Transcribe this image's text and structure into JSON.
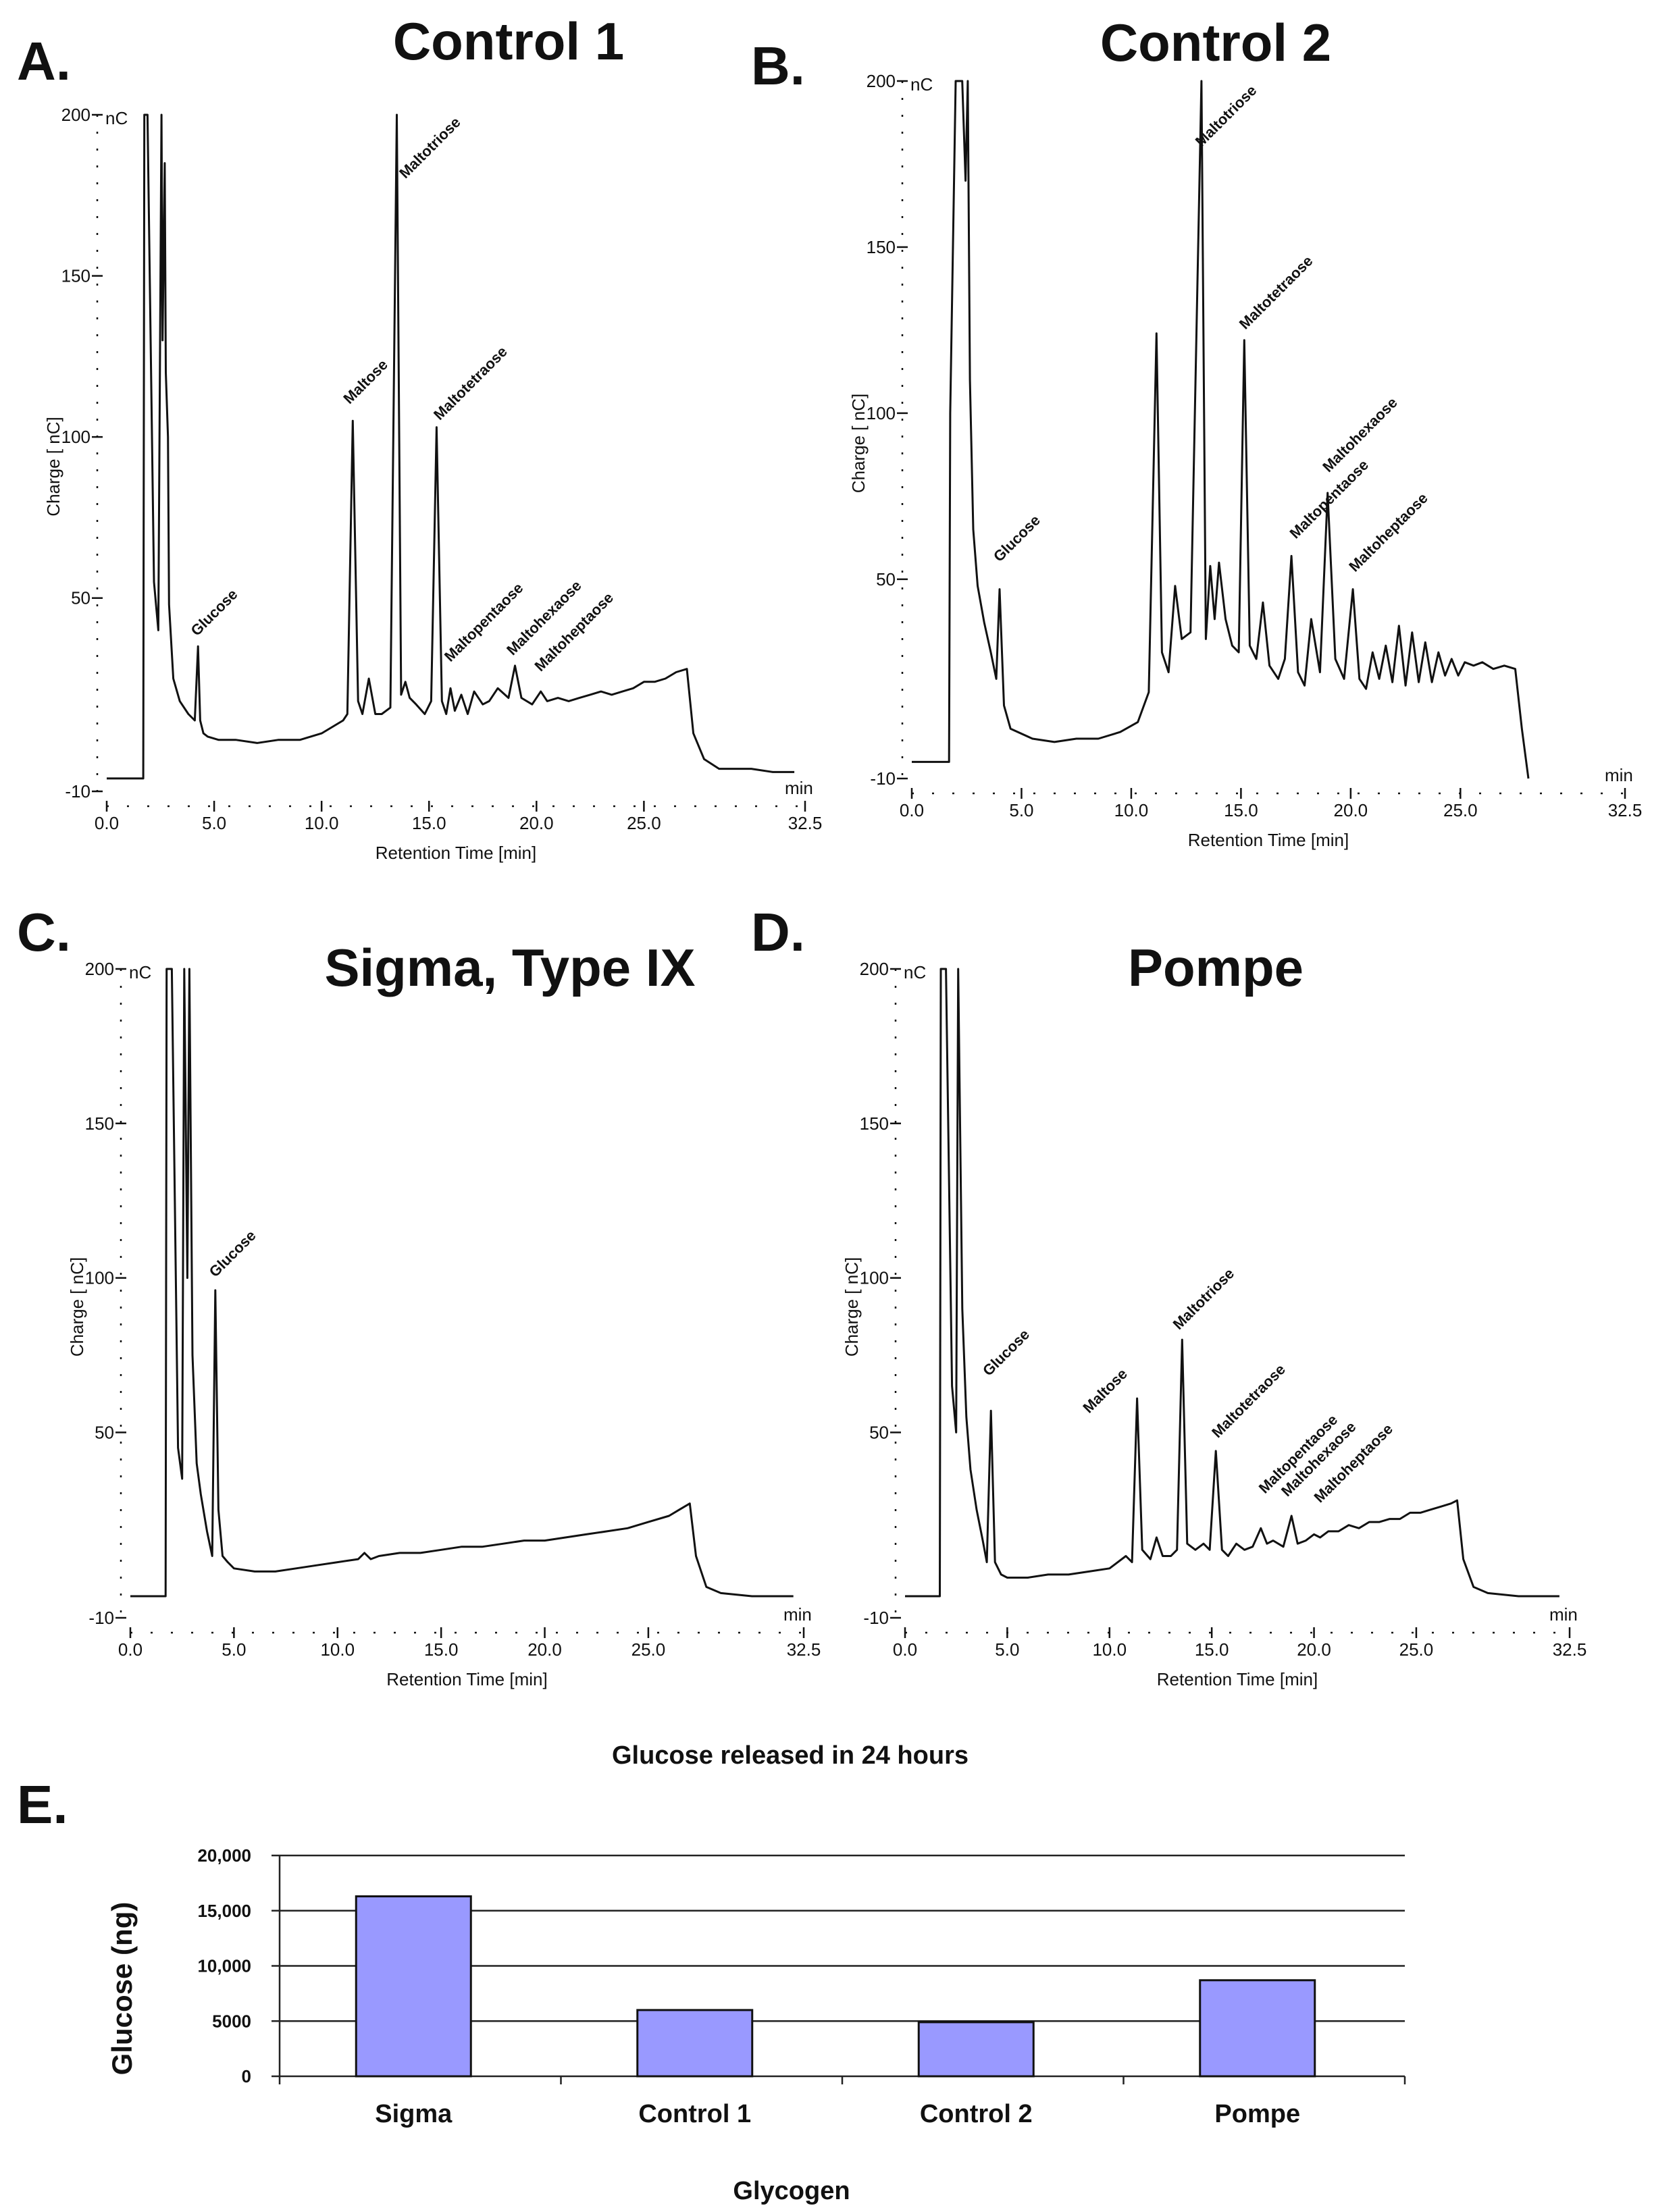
{
  "chart_data": [
    {
      "type": "line",
      "panel_letter": "A.",
      "title": "Control 1",
      "ylabel": "Charge [ nC]",
      "xlabel": "Retention Time [min]",
      "y_unit": "nC",
      "x_unit": "min",
      "ylim": [
        -10,
        200
      ],
      "xlim": [
        0,
        32.5
      ],
      "y_ticks": [
        "200",
        "150",
        "100",
        "50",
        "-10"
      ],
      "x_ticks": [
        "0.0",
        "5.0",
        "10.0",
        "15.0",
        "20.0",
        "25.0",
        "32.5"
      ],
      "x": [
        0.0,
        1.7,
        1.75,
        1.9,
        2.2,
        2.4,
        2.55,
        2.6,
        2.7,
        2.75,
        2.85,
        2.9,
        3.1,
        3.4,
        3.8,
        4.1,
        4.25,
        4.35,
        4.5,
        4.7,
        5.2,
        6.0,
        7.0,
        8.0,
        9.0,
        10.0,
        11.0,
        11.2,
        11.45,
        11.7,
        11.9,
        12.2,
        12.5,
        12.8,
        13.2,
        13.5,
        13.7,
        13.9,
        14.1,
        14.4,
        14.8,
        15.1,
        15.35,
        15.6,
        15.8,
        16.0,
        16.2,
        16.5,
        16.8,
        17.1,
        17.5,
        17.8,
        18.2,
        18.7,
        19.0,
        19.3,
        19.8,
        20.2,
        20.5,
        21.0,
        21.5,
        22.0,
        22.5,
        23.0,
        23.5,
        24.0,
        24.5,
        25.0,
        25.5,
        26.0,
        26.5,
        27.0,
        27.3,
        27.8,
        28.5,
        30.0,
        31.0,
        32.0
      ],
      "y": [
        -6,
        -6,
        200,
        200,
        55,
        40,
        200,
        130,
        185,
        120,
        100,
        48,
        25,
        18,
        14,
        12,
        35,
        12,
        8,
        7,
        6,
        6,
        5,
        6,
        6,
        8,
        12,
        14,
        105,
        18,
        14,
        25,
        14,
        14,
        16,
        200,
        20,
        24,
        19,
        17,
        14,
        18,
        103,
        18,
        14,
        22,
        15,
        20,
        14,
        21,
        17,
        18,
        22,
        19,
        29,
        19,
        17,
        21,
        18,
        19,
        18,
        19,
        20,
        21,
        20,
        21,
        22,
        24,
        24,
        25,
        27,
        28,
        8,
        0,
        -3,
        -3,
        -4,
        -4
      ],
      "peak_labels": [
        {
          "text": "Glucose",
          "x": 4.2,
          "y": 38
        },
        {
          "text": "Maltose",
          "x": 11.3,
          "y": 110
        },
        {
          "text": "Maltotriose",
          "x": 13.9,
          "y": 180
        },
        {
          "text": "Maltotetraose",
          "x": 15.5,
          "y": 105
        },
        {
          "text": "Maltopentaose",
          "x": 16.0,
          "y": 30
        },
        {
          "text": "Maltohexaose",
          "x": 18.9,
          "y": 32
        },
        {
          "text": "Maltoheptaose",
          "x": 20.2,
          "y": 27
        }
      ]
    },
    {
      "type": "line",
      "panel_letter": "B.",
      "title": "Control 2",
      "ylabel": "Charge [ nC]",
      "xlabel": "Retention Time [min]",
      "y_unit": "nC",
      "x_unit": "min",
      "ylim": [
        -10,
        200
      ],
      "xlim": [
        0,
        32.5
      ],
      "y_ticks": [
        "200",
        "150",
        "100",
        "50",
        "-10"
      ],
      "x_ticks": [
        "0.0",
        "5.0",
        "10.0",
        "15.0",
        "20.0",
        "25.0",
        "32.5"
      ],
      "x": [
        0.0,
        1.7,
        1.75,
        2.0,
        2.3,
        2.45,
        2.55,
        2.65,
        2.8,
        3.0,
        3.3,
        3.6,
        3.85,
        4.0,
        4.2,
        4.5,
        5.5,
        6.5,
        7.5,
        8.5,
        9.5,
        10.3,
        10.8,
        11.15,
        11.4,
        11.7,
        12.0,
        12.3,
        12.7,
        13.2,
        13.4,
        13.6,
        13.8,
        14.0,
        14.3,
        14.6,
        14.9,
        15.15,
        15.4,
        15.7,
        16.0,
        16.3,
        16.7,
        17.0,
        17.3,
        17.6,
        17.9,
        18.2,
        18.6,
        18.95,
        19.3,
        19.7,
        20.1,
        20.4,
        20.7,
        21.0,
        21.3,
        21.6,
        21.9,
        22.2,
        22.5,
        22.8,
        23.1,
        23.4,
        23.7,
        24.0,
        24.3,
        24.6,
        24.9,
        25.2,
        25.6,
        26.0,
        26.5,
        27.0,
        27.5,
        27.8,
        28.1
      ],
      "y": [
        -5,
        -5,
        100,
        200,
        200,
        170,
        200,
        110,
        65,
        48,
        37,
        28,
        20,
        47,
        12,
        5,
        2,
        1,
        2,
        2,
        4,
        7,
        16,
        124,
        28,
        22,
        48,
        32,
        34,
        200,
        32,
        54,
        38,
        55,
        38,
        30,
        28,
        122,
        30,
        26,
        43,
        24,
        20,
        26,
        57,
        22,
        18,
        38,
        22,
        76,
        26,
        20,
        47,
        20,
        17,
        28,
        20,
        30,
        19,
        36,
        18,
        34,
        19,
        31,
        19,
        28,
        21,
        26,
        21,
        25,
        24,
        25,
        23,
        24,
        23,
        5,
        -10
      ],
      "peak_labels": [
        {
          "text": "Glucose",
          "x": 4.0,
          "y": 55
        },
        {
          "text": "Maltotriose",
          "x": 13.2,
          "y": 180
        },
        {
          "text": "Maltotetraose",
          "x": 15.2,
          "y": 125
        },
        {
          "text": "Maltohexaose",
          "x": 19.0,
          "y": 82
        },
        {
          "text": "Maltopentaose",
          "x": 17.5,
          "y": 62
        },
        {
          "text": "Maltoheptaose",
          "x": 20.2,
          "y": 52
        }
      ]
    },
    {
      "type": "line",
      "panel_letter": "C.",
      "title": "Sigma, Type IX",
      "ylabel": "Charge [ nC]",
      "xlabel": "Retention Time [min]",
      "y_unit": "nC",
      "x_unit": "min",
      "ylim": [
        -10,
        200
      ],
      "xlim": [
        0,
        32.5
      ],
      "y_ticks": [
        "200",
        "150",
        "100",
        "50",
        "-10"
      ],
      "x_ticks": [
        "0.0",
        "5.0",
        "10.0",
        "15.0",
        "20.0",
        "25.0",
        "32.5"
      ],
      "x": [
        0.0,
        1.7,
        1.75,
        2.0,
        2.3,
        2.5,
        2.6,
        2.75,
        2.85,
        3.0,
        3.2,
        3.4,
        3.7,
        3.95,
        4.1,
        4.25,
        4.45,
        4.7,
        5.0,
        6.0,
        7.0,
        8.0,
        9.0,
        10.0,
        11.0,
        11.3,
        11.6,
        12.0,
        13.0,
        14.0,
        15.0,
        16.0,
        17.0,
        18.0,
        19.0,
        20.0,
        21.0,
        22.0,
        23.0,
        24.0,
        25.0,
        26.0,
        26.5,
        27.0,
        27.3,
        27.8,
        28.5,
        30.0,
        31.0,
        32.0
      ],
      "y": [
        -3,
        -3,
        200,
        200,
        45,
        35,
        200,
        100,
        200,
        75,
        40,
        30,
        18,
        10,
        96,
        25,
        10,
        8,
        6,
        5,
        5,
        6,
        7,
        8,
        9,
        11,
        9,
        10,
        11,
        11,
        12,
        13,
        13,
        14,
        15,
        15,
        16,
        17,
        18,
        19,
        21,
        23,
        25,
        27,
        10,
        0,
        -2,
        -3,
        -3,
        -3
      ],
      "peak_labels": [
        {
          "text": "Glucose",
          "x": 4.1,
          "y": 100
        }
      ]
    },
    {
      "type": "line",
      "panel_letter": "D.",
      "title": "Pompe",
      "ylabel": "Charge [ nC]",
      "xlabel": "Retention Time [min]",
      "y_unit": "nC",
      "x_unit": "min",
      "ylim": [
        -10,
        200
      ],
      "xlim": [
        0,
        32.5
      ],
      "y_ticks": [
        "200",
        "150",
        "100",
        "50",
        "-10"
      ],
      "x_ticks": [
        "0.0",
        "5.0",
        "10.0",
        "15.0",
        "20.0",
        "25.0",
        "32.5"
      ],
      "x": [
        0.0,
        1.7,
        1.75,
        2.0,
        2.3,
        2.5,
        2.6,
        2.8,
        3.0,
        3.2,
        3.5,
        3.8,
        4.0,
        4.2,
        4.4,
        4.7,
        5.0,
        6.0,
        7.0,
        8.0,
        9.0,
        10.0,
        10.8,
        11.1,
        11.35,
        11.6,
        12.0,
        12.3,
        12.6,
        13.0,
        13.3,
        13.55,
        13.8,
        14.2,
        14.6,
        14.9,
        15.2,
        15.5,
        15.8,
        16.2,
        16.6,
        17.0,
        17.4,
        17.7,
        18.0,
        18.5,
        18.9,
        19.2,
        19.6,
        20.0,
        20.3,
        20.7,
        21.2,
        21.7,
        22.2,
        22.7,
        23.2,
        23.7,
        24.2,
        24.7,
        25.2,
        25.7,
        26.2,
        26.7,
        27.0,
        27.3,
        27.8,
        28.5,
        30.0,
        31.0,
        32.0
      ],
      "y": [
        -3,
        -3,
        200,
        200,
        65,
        50,
        200,
        90,
        55,
        38,
        25,
        15,
        8,
        57,
        8,
        4,
        3,
        3,
        4,
        4,
        5,
        6,
        10,
        8,
        61,
        12,
        9,
        16,
        10,
        10,
        12,
        80,
        14,
        12,
        14,
        12,
        44,
        12,
        10,
        14,
        12,
        13,
        19,
        14,
        15,
        13,
        23,
        14,
        15,
        17,
        16,
        18,
        18,
        20,
        19,
        21,
        21,
        22,
        22,
        24,
        24,
        25,
        26,
        27,
        28,
        9,
        0,
        -2,
        -3,
        -3,
        -3
      ],
      "peak_labels": [
        {
          "text": "Glucose",
          "x": 4.1,
          "y": 68
        },
        {
          "text": "Maltose",
          "x": 9.0,
          "y": 56
        },
        {
          "text": "Maltotriose",
          "x": 13.4,
          "y": 83
        },
        {
          "text": "Maltotetraose",
          "x": 15.3,
          "y": 48
        },
        {
          "text": "Maltopentaose",
          "x": 17.6,
          "y": 30
        },
        {
          "text": "Maltohexaose",
          "x": 18.7,
          "y": 29
        },
        {
          "text": "Maltoheptaose",
          "x": 20.3,
          "y": 27
        }
      ]
    },
    {
      "type": "bar",
      "panel_letter": "E.",
      "title": "Glucose released in 24 hours",
      "ylabel": "Glucose (ng)",
      "xlabel": "Glycogen",
      "categories": [
        "Sigma",
        "Control 1",
        "Control 2",
        "Pompe"
      ],
      "values": [
        16300,
        6000,
        4900,
        8700
      ],
      "ylim": [
        0,
        20000
      ],
      "y_ticks": [
        {
          "value": 20000,
          "label": "20,000"
        },
        {
          "value": 15000,
          "label": "15,000"
        },
        {
          "value": 10000,
          "label": "10,000"
        },
        {
          "value": 5000,
          "label": "5000"
        },
        {
          "value": 0,
          "label": "0"
        }
      ],
      "bar_color": "#9999ff",
      "grid": true,
      "legend": "none"
    }
  ]
}
